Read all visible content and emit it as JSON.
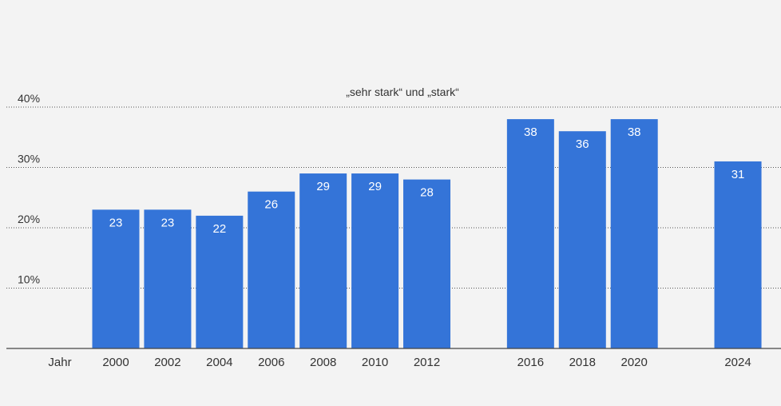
{
  "chart_data": {
    "type": "bar",
    "subtitle": "„sehr stark“ und „stark“",
    "xlabel": "Jahr",
    "categories": [
      "2000",
      "2002",
      "2004",
      "2006",
      "2008",
      "2010",
      "2012",
      "2016",
      "2018",
      "2020",
      "2024"
    ],
    "years": [
      2000,
      2002,
      2004,
      2006,
      2008,
      2010,
      2012,
      2016,
      2018,
      2020,
      2024
    ],
    "values": [
      23,
      23,
      22,
      26,
      29,
      29,
      28,
      38,
      36,
      38,
      31
    ],
    "yticks": [
      10,
      20,
      30,
      40
    ],
    "ytick_labels": [
      "10%",
      "20%",
      "30%",
      "40%"
    ],
    "ylim": [
      0,
      40
    ],
    "grid": true,
    "bar_color": "#3474d8"
  }
}
